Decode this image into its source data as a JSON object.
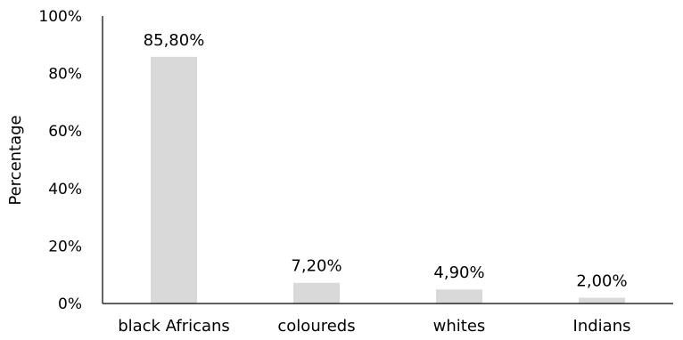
{
  "chart_data": {
    "type": "bar",
    "title": "",
    "xlabel": "",
    "ylabel": "Percentage",
    "ylim": [
      0,
      100
    ],
    "yticks": [
      "0%",
      "20%",
      "40%",
      "60%",
      "80%",
      "100%"
    ],
    "categories": [
      "black Africans",
      "coloureds",
      "whites",
      "Indians"
    ],
    "values": [
      85.8,
      7.2,
      4.9,
      2.0
    ],
    "data_labels": [
      "85,80%",
      "7,20%",
      "4,90%",
      "2,00%"
    ],
    "bar_color": "#d9d9d9",
    "grid": false,
    "legend": "none"
  }
}
